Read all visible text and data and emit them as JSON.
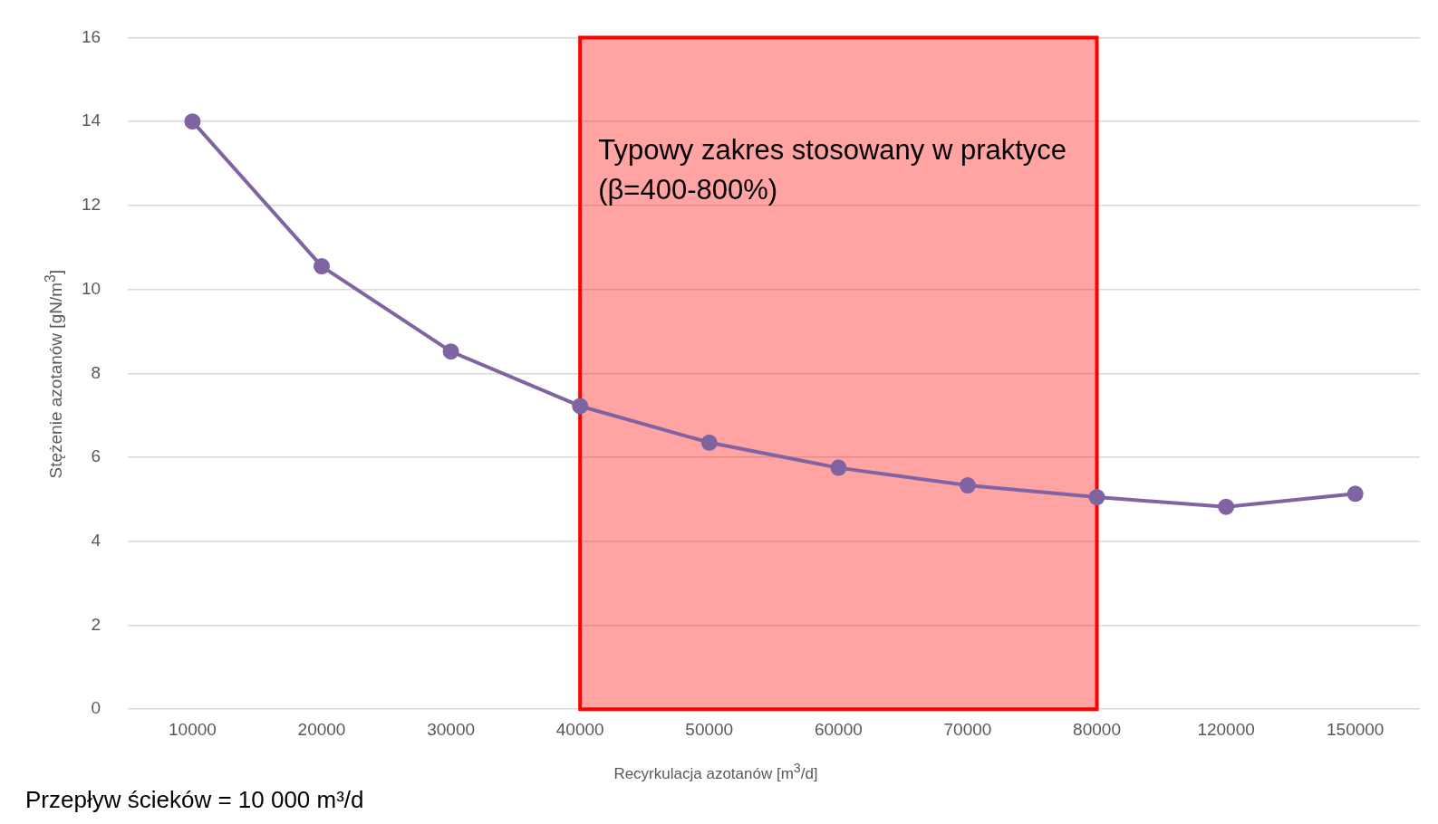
{
  "chart_data": {
    "type": "line",
    "xlabel": "Recyrkulacja azotanów [m$^{3}$/d]",
    "ylabel": "Stężenie azotanów [gN/m$^{3}$]",
    "categories": [
      "10000",
      "20000",
      "30000",
      "40000",
      "50000",
      "60000",
      "70000",
      "80000",
      "120000",
      "150000"
    ],
    "series": [
      {
        "color": "#8064a2",
        "values": [
          14,
          10.55,
          8.52,
          7.22,
          6.35,
          5.75,
          5.33,
          5.05,
          4.82,
          5.13
        ]
      }
    ],
    "ylim": [
      0,
      16
    ],
    "yticks": [
      0,
      2,
      4,
      6,
      8,
      10,
      12,
      14,
      16
    ],
    "grid": "y",
    "legend": false,
    "marker": "circle",
    "line_style": "solid",
    "bands": [
      {
        "axis": "x",
        "from": "40000",
        "to": "80000",
        "label": "Typowy zakres stosowany w praktyce (β=400-800%)",
        "color": "#ff0000"
      }
    ],
    "annotations": [
      "Przepływ ścieków  = 10 000 m³/d"
    ]
  }
}
